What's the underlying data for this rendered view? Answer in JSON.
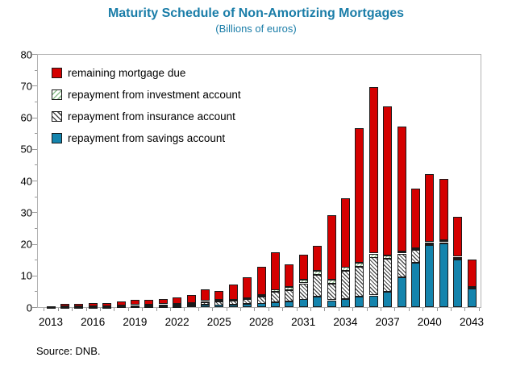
{
  "header": {
    "title": "Maturity Schedule of Non-Amortizing Mortgages",
    "subtitle": "(Billions of euros)"
  },
  "source_note": "Source: DNB.",
  "colors": {
    "title_blue": "#1A7DA8",
    "remaining_red": "#D40000",
    "savings_teal": "#1484AD",
    "investment_hatch_green": "#8CBE8C",
    "insurance_hatch_dark": "#4a4a4a",
    "frame_gray": "#b3b3b3"
  },
  "legend": {
    "items": [
      {
        "id": "remaining",
        "label": "remaining mortgage due"
      },
      {
        "id": "investment",
        "label": "repayment from investment account"
      },
      {
        "id": "insurance",
        "label": "repayment from insurance account"
      },
      {
        "id": "savings",
        "label": "repayment from savings account"
      }
    ]
  },
  "chart_data": {
    "type": "bar",
    "stacked": true,
    "title": "Maturity Schedule of Non-Amortizing Mortgages",
    "subtitle": "(Billions of euros)",
    "xlabel": "",
    "ylabel": "Billions of euros",
    "ylim": [
      0,
      80
    ],
    "ytick_major": [
      0,
      10,
      20,
      30,
      40,
      50,
      60,
      70,
      80
    ],
    "ytick_minor": [
      5,
      15,
      25,
      35,
      45,
      55,
      65,
      75
    ],
    "grid": false,
    "legend_position": "inside top-left",
    "categories": [
      2013,
      2014,
      2015,
      2016,
      2017,
      2018,
      2019,
      2020,
      2021,
      2022,
      2023,
      2024,
      2025,
      2026,
      2027,
      2028,
      2029,
      2030,
      2031,
      2032,
      2033,
      2034,
      2035,
      2036,
      2037,
      2038,
      2039,
      2040,
      2041,
      2042,
      2043
    ],
    "xtick_labels": [
      "2013",
      "2016",
      "2019",
      "2022",
      "2025",
      "2028",
      "2031",
      "2034",
      "2037",
      "2040",
      "2043"
    ],
    "stack_order_bottom_to_top": [
      "savings",
      "insurance",
      "investment",
      "remaining"
    ],
    "series": [
      {
        "id": "savings",
        "name": "repayment from savings account",
        "values": [
          0.1,
          0.1,
          0.1,
          0.1,
          0.1,
          0.2,
          0.2,
          0.2,
          0.3,
          0.3,
          0.4,
          0.8,
          0.7,
          0.8,
          1.0,
          1.2,
          1.5,
          1.8,
          2.5,
          3.3,
          2.1,
          2.6,
          3.2,
          3.6,
          4.8,
          9.4,
          14.0,
          19.6,
          20.2,
          15.0,
          5.8
        ]
      },
      {
        "id": "insurance",
        "name": "repayment from insurance account",
        "values": [
          0.1,
          0.1,
          0.1,
          0.2,
          0.2,
          0.3,
          0.3,
          0.4,
          0.4,
          0.5,
          0.6,
          0.7,
          1.2,
          1.2,
          1.5,
          2.2,
          3.3,
          3.6,
          5.0,
          6.8,
          5.2,
          8.9,
          9.5,
          12.1,
          10.5,
          7.5,
          4.0,
          0.3,
          0.3,
          0.3,
          0.3
        ]
      },
      {
        "id": "investment",
        "name": "repayment from investment account",
        "values": [
          0.0,
          0.1,
          0.1,
          0.1,
          0.1,
          0.1,
          0.1,
          0.2,
          0.2,
          0.2,
          0.3,
          0.4,
          0.4,
          0.4,
          0.5,
          0.5,
          0.7,
          0.9,
          1.1,
          1.4,
          1.3,
          1.2,
          1.3,
          1.2,
          1.0,
          0.6,
          0.6,
          0.6,
          0.6,
          0.6,
          0.2
        ]
      },
      {
        "id": "remaining",
        "name": "remaining mortgage due",
        "values": [
          0.1,
          0.8,
          0.8,
          0.9,
          1.0,
          1.3,
          1.6,
          1.6,
          1.6,
          2.0,
          2.6,
          3.6,
          2.9,
          4.8,
          6.5,
          8.9,
          11.9,
          7.2,
          7.9,
          8.0,
          20.4,
          21.8,
          42.5,
          52.6,
          47.2,
          39.5,
          18.9,
          21.5,
          19.4,
          12.6,
          8.7
        ]
      }
    ],
    "totals": [
      0.3,
      1.1,
      1.1,
      1.3,
      1.4,
      1.9,
      2.2,
      2.4,
      2.5,
      3.0,
      3.9,
      5.5,
      5.2,
      7.2,
      9.5,
      12.8,
      17.4,
      13.5,
      16.5,
      19.5,
      29.0,
      34.5,
      56.5,
      69.5,
      63.5,
      57.0,
      37.5,
      42.0,
      40.5,
      28.5,
      15.0
    ]
  }
}
